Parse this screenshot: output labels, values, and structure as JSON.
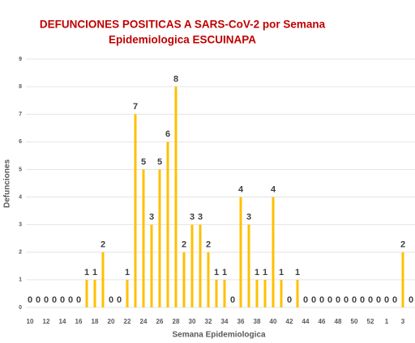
{
  "chart_data": {
    "type": "bar",
    "title": [
      "DEFUNCIONES POSITICAS A SARS-CoV-2 por Semana",
      "Epidemiologica ESCUINAPA"
    ],
    "x_label": "Semana Epidemiologica",
    "y_label": "Defunciones",
    "categories": [
      "10",
      null,
      "12",
      null,
      "14",
      null,
      "16",
      null,
      "18",
      null,
      "20",
      null,
      "22",
      null,
      "24",
      null,
      "26",
      null,
      "28",
      null,
      "30",
      null,
      "32",
      null,
      "34",
      null,
      "36",
      null,
      "38",
      null,
      "40",
      null,
      "42",
      null,
      "44",
      null,
      "46",
      null,
      "48",
      null,
      "50",
      null,
      "52",
      null,
      "1",
      null,
      "3",
      null
    ],
    "values": [
      0,
      0,
      0,
      0,
      0,
      0,
      0,
      1,
      1,
      2,
      0,
      0,
      1,
      7,
      5,
      3,
      5,
      6,
      8,
      2,
      3,
      3,
      2,
      1,
      1,
      0,
      4,
      3,
      1,
      1,
      4,
      1,
      0,
      1,
      0,
      0,
      0,
      0,
      0,
      0,
      0,
      0,
      0,
      0,
      0,
      0,
      2,
      0
    ],
    "color": "#ffc000",
    "ylim": [
      0,
      9
    ],
    "yticks": [
      0,
      1,
      2,
      3,
      4,
      5,
      6,
      7,
      8,
      9
    ],
    "grid": true
  }
}
